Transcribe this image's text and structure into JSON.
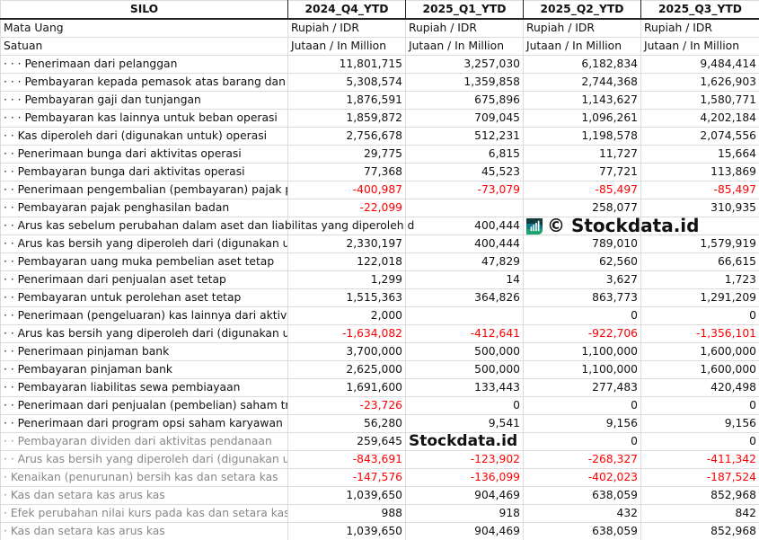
{
  "header": {
    "title": "SILO",
    "periods": [
      "2024_Q4_YTD",
      "2025_Q1_YTD",
      "2025_Q2_YTD",
      "2025_Q3_YTD"
    ]
  },
  "meta_rows": [
    {
      "label": "Mata Uang",
      "values": [
        "Rupiah / IDR",
        "Rupiah / IDR",
        "Rupiah / IDR",
        "Rupiah / IDR"
      ]
    },
    {
      "label": "Satuan",
      "values": [
        "Jutaan / In Million",
        "Jutaan / In Million",
        "Jutaan / In Million",
        "Jutaan / In Million"
      ]
    }
  ],
  "rows": [
    {
      "label": "· · · Penerimaan dari pelanggan",
      "values": [
        "11,801,715",
        "3,257,030",
        "6,182,834",
        "9,484,414"
      ]
    },
    {
      "label": "· · · Pembayaran kepada pemasok atas barang dan ja",
      "values": [
        "5,308,574",
        "1,359,858",
        "2,744,368",
        "1,626,903"
      ]
    },
    {
      "label": "· · · Pembayaran gaji dan tunjangan",
      "values": [
        "1,876,591",
        "675,896",
        "1,143,627",
        "1,580,771"
      ]
    },
    {
      "label": "· · · Pembayaran kas lainnya untuk beban operasi",
      "values": [
        "1,859,872",
        "709,045",
        "1,096,261",
        "4,202,184"
      ]
    },
    {
      "label": "· · Kas diperoleh dari (digunakan untuk) operasi",
      "values": [
        "2,756,678",
        "512,231",
        "1,198,578",
        "2,074,556"
      ]
    },
    {
      "label": "· · Penerimaan bunga dari aktivitas operasi",
      "values": [
        "29,775",
        "6,815",
        "11,727",
        "15,664"
      ]
    },
    {
      "label": "· · Pembayaran bunga dari aktivitas operasi",
      "values": [
        "77,368",
        "45,523",
        "77,721",
        "113,869"
      ]
    },
    {
      "label": "· · Penerimaan pengembalian (pembayaran) pajak p",
      "values": [
        "-400,987",
        "-73,079",
        "-85,497",
        "-85,497"
      ]
    },
    {
      "label": "· · Pembayaran pajak penghasilan badan",
      "values": [
        "-22,099",
        "",
        "258,077",
        "310,935"
      ]
    },
    {
      "label": "· · Arus kas sebelum perubahan dalam aset dan liabilitas yang diperoleh d",
      "values": [
        "",
        "400,444",
        "",
        ""
      ]
    },
    {
      "label": "· · Arus kas bersih yang diperoleh dari (digunakan ur",
      "values": [
        "2,330,197",
        "400,444",
        "789,010",
        "1,579,919"
      ]
    },
    {
      "label": "· · Pembayaran uang muka pembelian aset tetap",
      "values": [
        "122,018",
        "47,829",
        "62,560",
        "66,615"
      ]
    },
    {
      "label": "· · Penerimaan dari penjualan aset tetap",
      "values": [
        "1,299",
        "14",
        "3,627",
        "1,723"
      ]
    },
    {
      "label": "· · Pembayaran untuk perolehan aset tetap",
      "values": [
        "1,515,363",
        "364,826",
        "863,773",
        "1,291,209"
      ]
    },
    {
      "label": "· · Penerimaan (pengeluaran) kas lainnya dari aktivit",
      "values": [
        "2,000",
        "",
        "0",
        "0"
      ]
    },
    {
      "label": "· · Arus kas bersih yang diperoleh dari (digunakan ur",
      "values": [
        "-1,634,082",
        "-412,641",
        "-922,706",
        "-1,356,101"
      ]
    },
    {
      "label": "· · Penerimaan pinjaman bank",
      "values": [
        "3,700,000",
        "500,000",
        "1,100,000",
        "1,600,000"
      ]
    },
    {
      "label": "· · Pembayaran pinjaman bank",
      "values": [
        "2,625,000",
        "500,000",
        "1,100,000",
        "1,600,000"
      ]
    },
    {
      "label": "· · Pembayaran liabilitas sewa pembiayaan",
      "values": [
        "1,691,600",
        "133,443",
        "277,483",
        "420,498"
      ]
    },
    {
      "label": "· · Penerimaan dari penjualan (pembelian) saham tr",
      "values": [
        "-23,726",
        "0",
        "0",
        "0"
      ]
    },
    {
      "label": "· · Penerimaan dari program opsi saham karyawan",
      "values": [
        "56,280",
        "9,541",
        "9,156",
        "9,156"
      ]
    },
    {
      "label": "· · Pembayaran dividen dari aktivitas pendanaan",
      "values": [
        "259,645",
        "",
        "0",
        "0"
      ]
    },
    {
      "label": "· · Arus kas bersih yang diperoleh dari (digunakan ur",
      "values": [
        "-843,691",
        "-123,902",
        "-268,327",
        "-411,342"
      ]
    },
    {
      "label": "· Kenaikan (penurunan) bersih kas dan setara kas",
      "values": [
        "-147,576",
        "-136,099",
        "-402,023",
        "-187,524"
      ]
    },
    {
      "label": "· Kas dan setara kas arus kas",
      "values": [
        "1,039,650",
        "904,469",
        "638,059",
        "852,968"
      ]
    },
    {
      "label": "· Efek perubahan nilai kurs pada kas dan setara kas",
      "values": [
        "988",
        "918",
        "432",
        "842"
      ]
    },
    {
      "label": "· Kas dan setara kas arus kas",
      "values": [
        "1,039,650",
        "904,469",
        "638,059",
        "852,968"
      ]
    }
  ],
  "watermark": {
    "brand": "Stockdata.id",
    "copyright": "© Stockdata.id"
  },
  "colors": {
    "negative": "#ff0000",
    "logo_dark": "#123c3c",
    "logo_teal": "#0a7a8c",
    "logo_green": "#1aa36f"
  }
}
